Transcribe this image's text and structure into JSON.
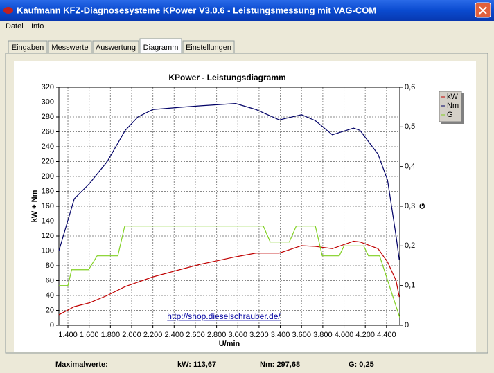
{
  "window": {
    "title": "Kaufmann KFZ-Diagnosesysteme  KPower V3.0.6 - Leistungsmessung mit VAG-COM"
  },
  "menu": [
    "Datei",
    "Info"
  ],
  "tabs": [
    "Eingaben",
    "Messwerte",
    "Auswertung",
    "Diagramm",
    "Einstellungen"
  ],
  "chart_data": {
    "type": "line",
    "title": "KPower - Leistungsdiagramm",
    "x_label": "U/min",
    "y_label": "kW + Nm",
    "y2_label": "G",
    "annotation": "http://shop.dieselschrauber.de/",
    "x": [
      1315,
      1460,
      1600,
      1770,
      1940,
      2060,
      2200,
      2460,
      2650,
      2980,
      3170,
      3390,
      3600,
      3730,
      3890,
      4090,
      4150,
      4320,
      4410,
      4490,
      4520
    ],
    "series": [
      {
        "name": "kW",
        "color": "#c00000",
        "values": [
          14,
          25,
          30,
          40,
          52,
          58,
          65,
          75,
          82,
          92,
          97,
          97,
          107,
          106,
          103,
          113,
          112,
          103,
          85,
          60,
          38
        ]
      },
      {
        "name": "Nm",
        "color": "#000066",
        "values": [
          100,
          170,
          190,
          220,
          262,
          280,
          290,
          293,
          295,
          298,
          290,
          276,
          283,
          275,
          256,
          265,
          262,
          230,
          195,
          120,
          88
        ]
      },
      {
        "name": "G",
        "color": "#80d020",
        "axis": "y2",
        "x": [
          1315,
          1400,
          1435,
          1595,
          1675,
          1870,
          1935,
          3240,
          3305,
          3485,
          3550,
          3730,
          3795,
          3955,
          4000,
          4185,
          4230,
          4335,
          4524
        ],
        "values": [
          0.1,
          0.1,
          0.14,
          0.14,
          0.175,
          0.175,
          0.25,
          0.25,
          0.21,
          0.21,
          0.25,
          0.25,
          0.175,
          0.175,
          0.2,
          0.2,
          0.175,
          0.175,
          0.02
        ]
      }
    ],
    "xlim": [
      1315,
      4525
    ],
    "xticks": [
      {
        "value": 1400,
        "label": "1.400"
      },
      {
        "value": 1600,
        "label": "1.600"
      },
      {
        "value": 1800,
        "label": "1.800"
      },
      {
        "value": 2000,
        "label": "2.000"
      },
      {
        "value": 2200,
        "label": "2.200"
      },
      {
        "value": 2400,
        "label": "2.400"
      },
      {
        "value": 2600,
        "label": "2.600"
      },
      {
        "value": 2800,
        "label": "2.800"
      },
      {
        "value": 3000,
        "label": "3.000"
      },
      {
        "value": 3200,
        "label": "3.200"
      },
      {
        "value": 3400,
        "label": "3.400"
      },
      {
        "value": 3600,
        "label": "3.600"
      },
      {
        "value": 3800,
        "label": "3.800"
      },
      {
        "value": 4000,
        "label": "4.000"
      },
      {
        "value": 4200,
        "label": "4.200"
      },
      {
        "value": 4400,
        "label": "4.400"
      }
    ],
    "ylim": [
      0,
      320
    ],
    "yticks": [
      0,
      20,
      40,
      60,
      80,
      100,
      120,
      140,
      160,
      180,
      200,
      220,
      240,
      260,
      280,
      300,
      320
    ],
    "y2lim": [
      0,
      0.6
    ],
    "y2ticks": [
      0,
      {
        "value": 0.1,
        "label": "0,1"
      },
      {
        "value": 0.2,
        "label": "0,2"
      },
      {
        "value": 0.3,
        "label": "0,3"
      },
      {
        "value": 0.4,
        "label": "0,4"
      },
      {
        "value": 0.5,
        "label": "0,5"
      },
      {
        "value": 0.6,
        "label": "0,6"
      }
    ],
    "grid": true
  },
  "footer": {
    "label": "Maximalwerte:",
    "kw": "kW: 113,67",
    "nm": "Nm: 297,68",
    "g": "G: 0,25"
  }
}
